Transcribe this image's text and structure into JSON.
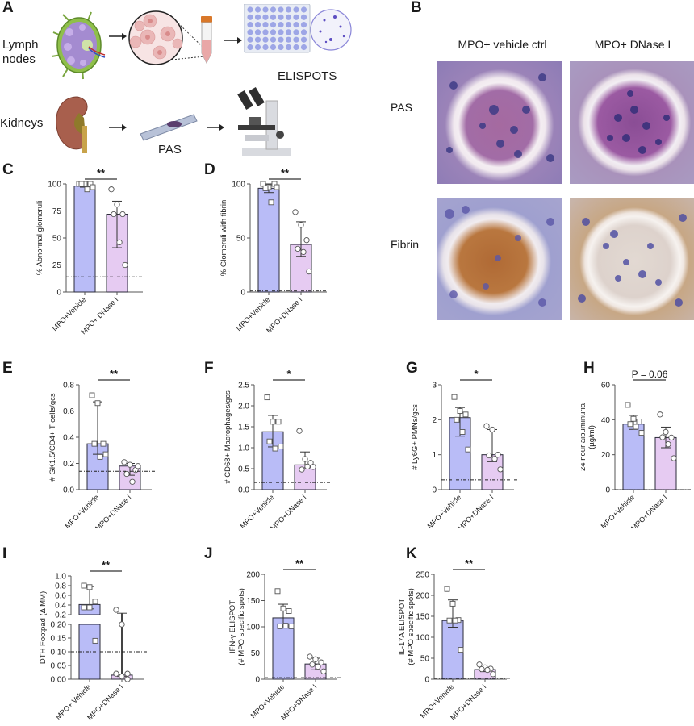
{
  "figure": {
    "panel_letters": [
      "A",
      "B",
      "C",
      "D",
      "E",
      "F",
      "G",
      "H",
      "I",
      "J",
      "K"
    ],
    "colors": {
      "vehicle_bar": "#b9bcf7",
      "dnase_bar": "#e6cbf2",
      "bar_edge": "#2b2b3a",
      "axis": "#555555",
      "text": "#1a1a1a"
    }
  },
  "panelA": {
    "letter": "A",
    "row1_label_line1": "Lymph",
    "row1_label_line2": "nodes",
    "row2_label": "Kidneys",
    "elispot_label": "ELISPOTS",
    "pas_label": "PAS",
    "icons": [
      "lymph-node-illustration",
      "cell-magnifier-illustration",
      "conical-tube-illustration",
      "elispot-plate-illustration",
      "spot-well-magnifier-illustration",
      "kidney-illustration",
      "slide-illustration",
      "microscope-illustration",
      "arrow-right-icon"
    ]
  },
  "panelB": {
    "letter": "B",
    "col1": "MPO+ vehicle ctrl",
    "col2": "MPO+ DNase I",
    "row1": "PAS",
    "row2": "Fibrin"
  },
  "chart_data": [
    {
      "panel": "C",
      "type": "bar",
      "categories": [
        "MPO+Vehicle",
        "MPO+ DNase I"
      ],
      "ylabel": "% Abnormal glomeruli",
      "ylim": [
        0,
        100
      ],
      "yticks": [
        0,
        25,
        50,
        75,
        100
      ],
      "values": [
        98,
        72
      ],
      "errors": [
        [
          97,
          100
        ],
        [
          41,
          84
        ]
      ],
      "points": [
        [
          100,
          100,
          100,
          100,
          95,
          97
        ],
        [
          95,
          81,
          72,
          72,
          46,
          25
        ]
      ],
      "baseline": 14,
      "significance": "**"
    },
    {
      "panel": "D",
      "type": "bar",
      "categories": [
        "MPO+Vehicle",
        "MPO+DNase I"
      ],
      "ylabel": "% Glomeruli with fibrin",
      "ylim": [
        0,
        100
      ],
      "yticks": [
        0,
        50,
        100
      ],
      "values": [
        96,
        44
      ],
      "errors": [
        [
          92,
          100
        ],
        [
          33,
          65
        ]
      ],
      "points": [
        [
          100,
          97,
          100,
          96,
          83,
          97
        ],
        [
          74,
          62,
          48,
          40,
          37,
          19
        ]
      ],
      "baseline": 1,
      "significance": "**"
    },
    {
      "panel": "E",
      "type": "bar",
      "categories": [
        "MPO+Vehicle",
        "MPO+DNase I"
      ],
      "ylabel": "# GK1.5/CD4+ T cells/gcs",
      "ylim": [
        0,
        0.8
      ],
      "yticks": [
        "0.0",
        "0.2",
        "0.4",
        "0.6",
        "0.8"
      ],
      "values": [
        0.35,
        0.18
      ],
      "errors": [
        [
          0.27,
          0.67
        ],
        [
          0.11,
          0.2
        ]
      ],
      "points": [
        [
          0.72,
          0.66,
          0.35,
          0.35,
          0.25,
          0.27
        ],
        [
          0.21,
          0.19,
          0.15,
          0.12,
          0.06,
          0.18
        ]
      ],
      "baseline": 0.14,
      "significance": "**"
    },
    {
      "panel": "F",
      "type": "bar",
      "categories": [
        "MPO+Vehicle",
        "MPO+DNase I"
      ],
      "ylabel": "# CD68+ Macrophages/gcs",
      "ylim": [
        0,
        2.5
      ],
      "yticks": [
        "0.0",
        "0.5",
        "1.0",
        "1.5",
        "2.0",
        "2.5"
      ],
      "values": [
        1.38,
        0.59
      ],
      "errors": [
        [
          1.02,
          1.77
        ],
        [
          0.52,
          0.9
        ]
      ],
      "points": [
        [
          2.2,
          1.62,
          1.62,
          1.15,
          0.98,
          1.03
        ],
        [
          1.4,
          0.73,
          0.64,
          0.48,
          0.55,
          0.54
        ]
      ],
      "baseline": 0.17,
      "significance": "*"
    },
    {
      "panel": "G",
      "type": "bar",
      "categories": [
        "MPO+Vehicle",
        "MPO+DNase I"
      ],
      "ylabel": "# Ly6G+ PMNs/gcs",
      "ylim": [
        0,
        3
      ],
      "yticks": [
        "0",
        "1",
        "2",
        "3"
      ],
      "values": [
        2.06,
        1.0
      ],
      "errors": [
        [
          1.53,
          2.35
        ],
        [
          0.8,
          1.72
        ]
      ],
      "points": [
        [
          2.65,
          2.25,
          2.15,
          2.0,
          1.65,
          1.15
        ],
        [
          1.82,
          1.72,
          1.0,
          0.98,
          0.88,
          0.58
        ]
      ],
      "baseline": 0.28,
      "significance": "*"
    },
    {
      "panel": "H",
      "type": "bar",
      "categories": [
        "MPO+Vehicle",
        "MPO+DNase I"
      ],
      "ylabel_line1": "24 hour albuminuria",
      "ylabel_line2": "(µg/ml)",
      "ylim": [
        0,
        60
      ],
      "yticks": [
        "0",
        "20",
        "40",
        "60"
      ],
      "values": [
        37.5,
        29.8
      ],
      "errors": [
        [
          34.5,
          42.5
        ],
        [
          24,
          35.8
        ]
      ],
      "points": [
        [
          48.5,
          40.5,
          39,
          37.5,
          36,
          32.5
        ],
        [
          43,
          33,
          29.8,
          30,
          26,
          18
        ]
      ],
      "baseline": 0,
      "significance": "P = 0.06"
    },
    {
      "panel": "I",
      "type": "bar",
      "categories": [
        "MPO+ Vehicle",
        "MPO+DNase I"
      ],
      "ylabel": "DTH Footpad (Δ MM)",
      "broken_axis": true,
      "upper_yticks": [
        "0.2",
        "0.4",
        "0.6",
        "0.8",
        "1.0"
      ],
      "lower_yticks": [
        "0.00",
        "0.05",
        "0.10",
        "0.15",
        "0.20"
      ],
      "values": [
        0.41,
        0.015
      ],
      "errors": [
        [
          0.32,
          0.78
        ],
        [
          0.01,
          0.23
        ]
      ],
      "points": [
        [
          0.8,
          0.77,
          0.47,
          0.35,
          0.35,
          0.14
        ],
        [
          0.3,
          0.2,
          0.02,
          0.02,
          0.01,
          0.0
        ]
      ],
      "baseline": 0.1,
      "significance": "**"
    },
    {
      "panel": "J",
      "type": "bar",
      "categories": [
        "MPO+Vehicle",
        "MPO+DNase I"
      ],
      "ylabel_line1": "IFN-γ ELISPOT",
      "ylabel_line2": "(# MPO specific spots)",
      "ylim": [
        0,
        200
      ],
      "yticks": [
        "0",
        "50",
        "100",
        "150",
        "200"
      ],
      "values": [
        117,
        29
      ],
      "errors": [
        [
          101,
          143
        ],
        [
          18,
          40
        ]
      ],
      "points": [
        [
          168,
          135,
          130,
          101,
          102,
          101
        ],
        [
          43,
          38,
          32,
          28,
          24,
          15
        ]
      ],
      "baseline": 3,
      "significance": "**"
    },
    {
      "panel": "K",
      "type": "bar",
      "categories": [
        "MPO+Vehicle",
        "MPO+DNase I"
      ],
      "ylabel_line1": "IL-17A  ELISPOT",
      "ylabel_line2": "(# MPO specific spots)",
      "ylim": [
        0,
        250
      ],
      "yticks": [
        "0",
        "50",
        "100",
        "150",
        "200",
        "250"
      ],
      "values": [
        140,
        23
      ],
      "errors": [
        [
          124,
          189
        ],
        [
          18,
          28
        ]
      ],
      "points": [
        [
          215,
          180,
          141,
          140,
          140,
          70
        ],
        [
          35,
          28,
          25,
          24,
          22,
          12
        ]
      ],
      "baseline": 2,
      "significance": "**"
    }
  ]
}
